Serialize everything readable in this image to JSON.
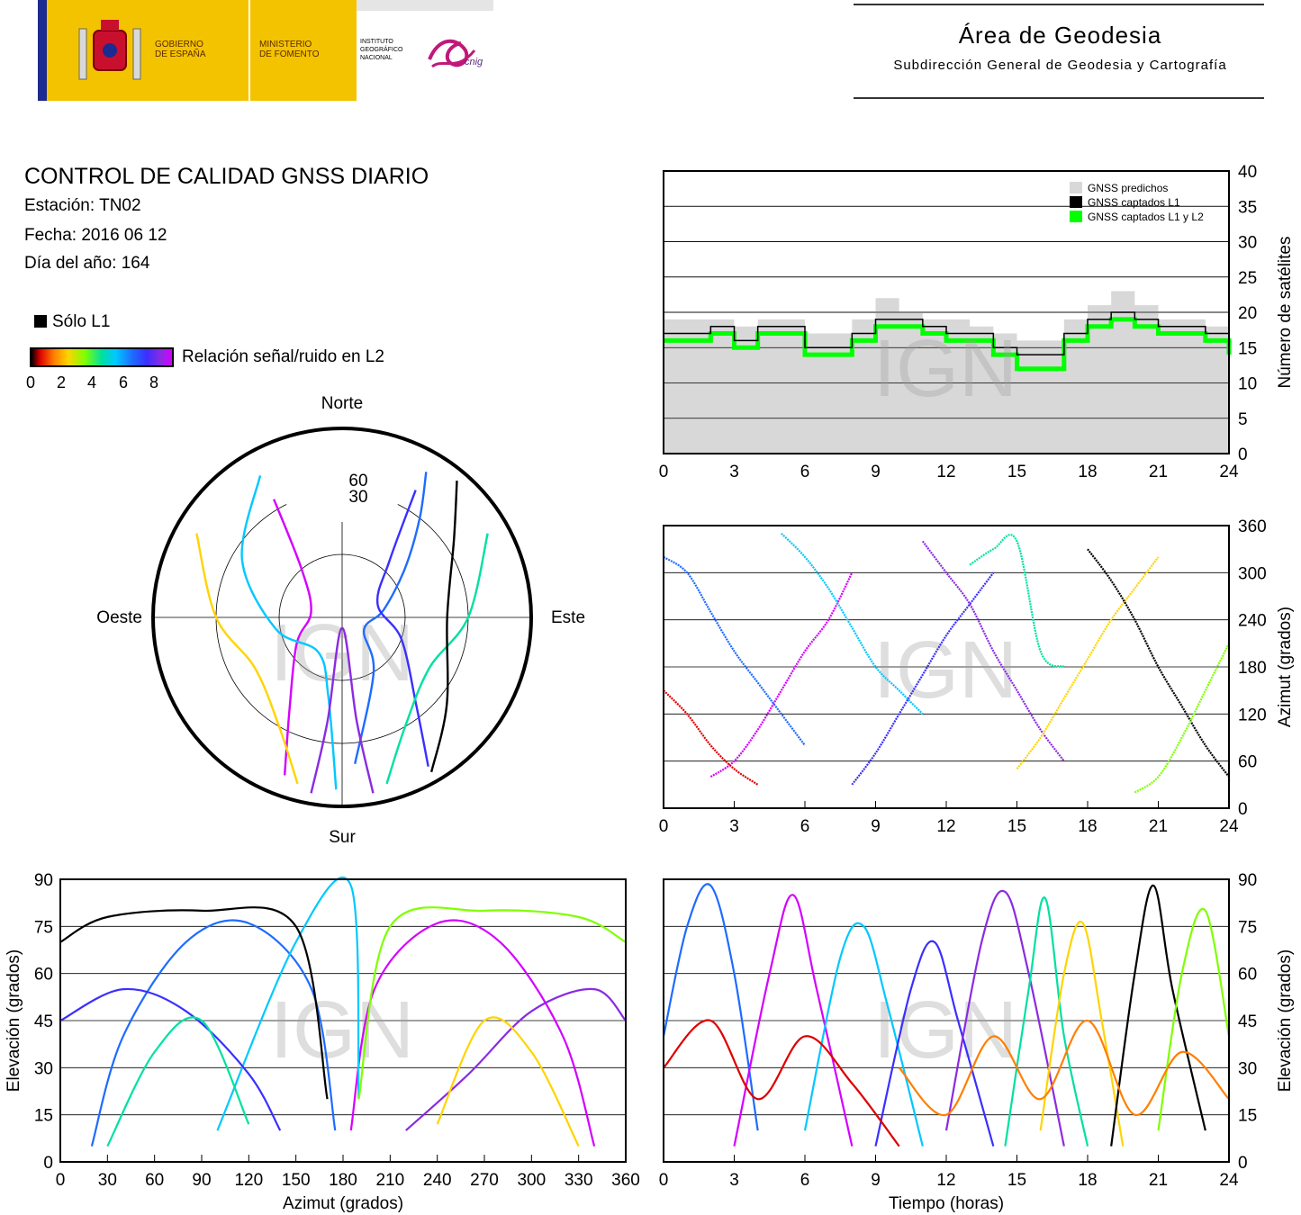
{
  "header": {
    "gov_line1": "GOBIERNO",
    "gov_line2": "DE ESPAÑA",
    "min_line1": "MINISTERIO",
    "min_line2": "DE FOMENTO",
    "ign_line1": "INSTITUTO",
    "ign_line2": "GEOGRÁFICO",
    "ign_line3": "NACIONAL",
    "cnig_text": "cnig",
    "area_title": "Área de Geodesia",
    "area_subtitle": "Subdirección General de Geodesia y Cartografía"
  },
  "report": {
    "title": "CONTROL DE CALIDAD GNSS DIARIO",
    "station": "Estación: TN02",
    "date": "Fecha: 2016 06 12",
    "doy": "Día del año: 164"
  },
  "legend": {
    "l1_only": "Sólo L1",
    "snr_label": "Relación señal/ruido en L2",
    "snr_ticks": [
      "0",
      "2",
      "4",
      "6",
      "8"
    ]
  },
  "colors": {
    "predicted": "#d8d8d8",
    "l1": "#000000",
    "l1l2": "#00ff00",
    "snr_scale": [
      "#000000",
      "#dd0000",
      "#ff7f00",
      "#ffd400",
      "#7fff00",
      "#00e0a0",
      "#00c8ff",
      "#1e6bff",
      "#3a2fff",
      "#8a2be2",
      "#d400ff"
    ]
  },
  "watermark": "IGN",
  "chart_data": [
    {
      "id": "satellites-count",
      "type": "area",
      "ylabel": "Número de satélites",
      "xlim": [
        0,
        24
      ],
      "ylim": [
        0,
        40
      ],
      "x_ticks": [
        "0",
        "3",
        "6",
        "9",
        "12",
        "15",
        "18",
        "21",
        "24"
      ],
      "y_ticks": [
        "0",
        "5",
        "10",
        "15",
        "20",
        "25",
        "30",
        "35",
        "40"
      ],
      "grid": true,
      "legend_position": "top-right",
      "x": [
        0,
        1,
        2,
        3,
        4,
        5,
        6,
        7,
        8,
        9,
        10,
        11,
        12,
        13,
        14,
        15,
        16,
        17,
        18,
        19,
        20,
        21,
        22,
        23,
        24
      ],
      "series": [
        {
          "name": "GNSS predichos",
          "values": [
            19,
            19,
            19,
            18,
            19,
            19,
            17,
            17,
            19,
            22,
            20,
            19,
            19,
            18,
            17,
            16,
            16,
            19,
            21,
            23,
            21,
            19,
            19,
            18,
            16
          ]
        },
        {
          "name": "GNSS captados L1",
          "values": [
            17,
            17,
            18,
            16,
            18,
            18,
            15,
            15,
            17,
            19,
            19,
            18,
            17,
            17,
            15,
            14,
            14,
            17,
            19,
            20,
            19,
            18,
            18,
            17,
            15
          ]
        },
        {
          "name": "GNSS captados L1 y L2",
          "values": [
            16,
            16,
            17,
            15,
            17,
            17,
            14,
            14,
            16,
            18,
            18,
            17,
            16,
            16,
            14,
            12,
            12,
            16,
            18,
            19,
            18,
            17,
            17,
            16,
            14
          ]
        }
      ]
    },
    {
      "id": "skyplot",
      "type": "scatter",
      "direction_labels": {
        "north": "Norte",
        "south": "Sur",
        "east": "Este",
        "west": "Oeste"
      },
      "ring_labels": [
        "30",
        "60"
      ],
      "series": [
        {
          "values": [
            [
              30,
              10
            ],
            [
              38,
              30
            ],
            [
              52,
              52
            ],
            [
              80,
              70
            ],
            [
              120,
              78
            ],
            [
              150,
              60
            ],
            [
              175,
              20
            ]
          ]
        },
        {
          "values": [
            [
              200,
              10
            ],
            [
              210,
              40
            ],
            [
              240,
              65
            ],
            [
              280,
              75
            ],
            [
              320,
              60
            ],
            [
              330,
              25
            ]
          ]
        },
        {
          "values": [
            [
              330,
              12
            ],
            [
              300,
              35
            ],
            [
              260,
              58
            ],
            [
              215,
              70
            ],
            [
              190,
              52
            ],
            [
              182,
              8
            ]
          ]
        },
        {
          "values": [
            [
              150,
              8
            ],
            [
              140,
              35
            ],
            [
              110,
              60
            ],
            [
              70,
              72
            ],
            [
              40,
              55
            ],
            [
              30,
              20
            ]
          ]
        },
        {
          "values": [
            [
              170,
              5
            ],
            [
              172,
              40
            ],
            [
              180,
              85
            ],
            [
              188,
              40
            ],
            [
              190,
              5
            ]
          ]
        },
        {
          "values": [
            [
              60,
              10
            ],
            [
              90,
              30
            ],
            [
              120,
              42
            ],
            [
              150,
              30
            ],
            [
              165,
              8
            ]
          ]
        },
        {
          "values": [
            [
              300,
              10
            ],
            [
              270,
              30
            ],
            [
              240,
              42
            ],
            [
              210,
              30
            ],
            [
              195,
              8
            ]
          ]
        },
        {
          "values": [
            [
              40,
              5
            ],
            [
              55,
              25
            ],
            [
              90,
              40
            ],
            [
              130,
              25
            ],
            [
              150,
              5
            ]
          ]
        }
      ]
    },
    {
      "id": "azimuth-time",
      "type": "scatter",
      "ylabel": "Azimut (grados)",
      "xlim": [
        0,
        24
      ],
      "ylim": [
        0,
        360
      ],
      "x_ticks": [
        "0",
        "3",
        "6",
        "9",
        "12",
        "15",
        "18",
        "21",
        "24"
      ],
      "y_ticks": [
        "0",
        "60",
        "120",
        "180",
        "240",
        "300",
        "360"
      ],
      "grid": true,
      "series": [
        {
          "x": [
            0,
            1,
            2,
            3,
            4,
            5,
            6
          ],
          "values": [
            320,
            300,
            250,
            200,
            160,
            120,
            80
          ]
        },
        {
          "x": [
            2,
            3,
            4,
            5,
            6,
            7,
            8
          ],
          "values": [
            40,
            60,
            100,
            150,
            200,
            240,
            300
          ]
        },
        {
          "x": [
            5,
            6,
            7,
            8,
            9,
            10,
            11
          ],
          "values": [
            350,
            320,
            280,
            230,
            180,
            150,
            120
          ]
        },
        {
          "x": [
            8,
            9,
            10,
            11,
            12,
            13,
            14
          ],
          "values": [
            30,
            70,
            120,
            170,
            220,
            260,
            300
          ]
        },
        {
          "x": [
            11,
            12,
            13,
            14,
            15,
            16,
            17
          ],
          "values": [
            340,
            300,
            260,
            200,
            150,
            100,
            60
          ]
        },
        {
          "x": [
            13,
            14,
            15,
            16,
            17
          ],
          "values": [
            310,
            330,
            340,
            200,
            180
          ]
        },
        {
          "x": [
            15,
            16,
            17,
            18,
            19,
            20,
            21
          ],
          "values": [
            50,
            90,
            140,
            190,
            240,
            280,
            320
          ]
        },
        {
          "x": [
            18,
            19,
            20,
            21,
            22,
            23,
            24
          ],
          "values": [
            330,
            290,
            240,
            180,
            130,
            80,
            40
          ]
        },
        {
          "x": [
            20,
            21,
            22,
            23,
            24
          ],
          "values": [
            20,
            40,
            90,
            150,
            210
          ]
        },
        {
          "x": [
            0,
            1,
            2,
            3,
            4
          ],
          "values": [
            150,
            120,
            80,
            50,
            30
          ]
        }
      ]
    },
    {
      "id": "elevation-azimuth",
      "type": "scatter",
      "xlabel": "Azimut (grados)",
      "ylabel": "Elevación (grados)",
      "xlim": [
        0,
        360
      ],
      "ylim": [
        0,
        90
      ],
      "x_ticks": [
        "0",
        "30",
        "60",
        "90",
        "120",
        "150",
        "180",
        "210",
        "240",
        "270",
        "300",
        "330",
        "360"
      ],
      "y_ticks": [
        "0",
        "15",
        "30",
        "45",
        "60",
        "75",
        "90"
      ],
      "grid": true,
      "series": [
        {
          "x": [
            20,
            40,
            80,
            120,
            160,
            175
          ],
          "values": [
            5,
            40,
            70,
            76,
            55,
            10
          ]
        },
        {
          "x": [
            185,
            200,
            240,
            280,
            320,
            340
          ],
          "values": [
            10,
            55,
            76,
            70,
            40,
            5
          ]
        },
        {
          "x": [
            100,
            150,
            185,
            190
          ],
          "values": [
            10,
            70,
            88,
            20
          ]
        },
        {
          "x": [
            0,
            40,
            80,
            120,
            140
          ],
          "values": [
            45,
            55,
            48,
            28,
            10
          ]
        },
        {
          "x": [
            220,
            260,
            300,
            340,
            360
          ],
          "values": [
            10,
            28,
            48,
            55,
            45
          ]
        },
        {
          "x": [
            30,
            60,
            90,
            120
          ],
          "values": [
            5,
            35,
            45,
            12
          ]
        },
        {
          "x": [
            240,
            270,
            300,
            330
          ],
          "values": [
            12,
            45,
            35,
            5
          ]
        },
        {
          "x": [
            0,
            30,
            90,
            150,
            170
          ],
          "values": [
            70,
            78,
            80,
            75,
            20
          ]
        },
        {
          "x": [
            190,
            210,
            270,
            330,
            360
          ],
          "values": [
            20,
            75,
            80,
            78,
            70
          ]
        }
      ]
    },
    {
      "id": "elevation-time",
      "type": "line",
      "xlabel": "Tiempo (horas)",
      "ylabel": "Elevación (grados)",
      "xlim": [
        0,
        24
      ],
      "ylim": [
        0,
        90
      ],
      "x_ticks": [
        "0",
        "3",
        "6",
        "9",
        "12",
        "15",
        "18",
        "21",
        "24"
      ],
      "y_ticks": [
        "0",
        "15",
        "30",
        "45",
        "60",
        "75",
        "90"
      ],
      "grid": true,
      "series": [
        {
          "x": [
            0,
            1,
            2,
            3,
            4
          ],
          "values": [
            40,
            75,
            88,
            60,
            10
          ]
        },
        {
          "x": [
            3,
            4.5,
            5.5,
            6.5,
            8
          ],
          "values": [
            5,
            60,
            85,
            55,
            5
          ]
        },
        {
          "x": [
            6,
            7.5,
            8.5,
            9.5,
            11
          ],
          "values": [
            10,
            65,
            75,
            50,
            5
          ]
        },
        {
          "x": [
            9,
            10.5,
            11.5,
            12.5,
            14
          ],
          "values": [
            5,
            55,
            70,
            45,
            5
          ]
        },
        {
          "x": [
            12,
            13.5,
            14.5,
            15.5,
            17
          ],
          "values": [
            10,
            70,
            86,
            60,
            5
          ]
        },
        {
          "x": [
            14.5,
            15.5,
            16.2,
            17,
            18
          ],
          "values": [
            5,
            55,
            84,
            40,
            5
          ]
        },
        {
          "x": [
            16,
            17,
            17.8,
            18.6,
            19.5
          ],
          "values": [
            10,
            60,
            76,
            45,
            5
          ]
        },
        {
          "x": [
            19,
            20,
            20.8,
            21.6,
            23
          ],
          "values": [
            5,
            60,
            88,
            55,
            10
          ]
        },
        {
          "x": [
            21,
            22,
            23,
            24
          ],
          "values": [
            10,
            60,
            80,
            40
          ]
        },
        {
          "x": [
            0,
            2,
            4,
            6,
            8,
            10
          ],
          "values": [
            30,
            45,
            20,
            40,
            25,
            5
          ]
        },
        {
          "x": [
            10,
            12,
            14,
            16,
            18,
            20,
            22,
            24
          ],
          "values": [
            30,
            15,
            40,
            20,
            45,
            15,
            35,
            20
          ]
        }
      ]
    }
  ]
}
